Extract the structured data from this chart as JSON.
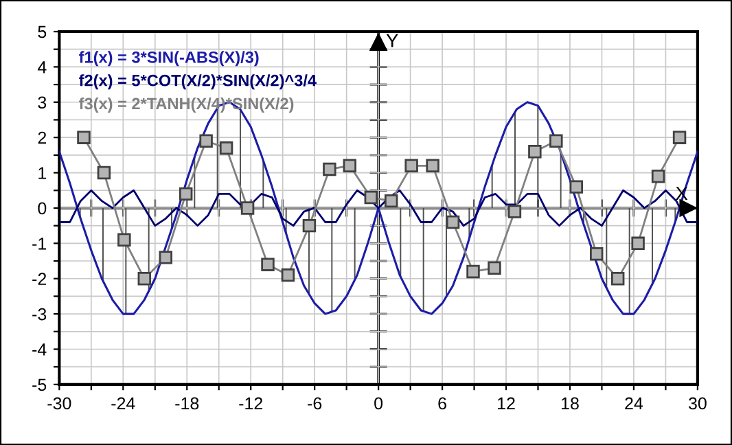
{
  "chart_data": {
    "type": "line",
    "xlabel": "X",
    "ylabel": "Y",
    "xlim": [
      -30,
      30
    ],
    "ylim": [
      -5,
      5
    ],
    "xticks": [
      -30,
      {
        "value": -27,
        "label": null
      },
      -24,
      {
        "value": -21,
        "label": null
      },
      -18,
      {
        "value": -15,
        "label": null
      },
      -12,
      {
        "value": -9,
        "label": null
      },
      -6,
      {
        "value": -3,
        "label": null
      },
      0,
      {
        "value": 3,
        "label": null
      },
      6,
      {
        "value": 9,
        "label": null
      },
      12,
      {
        "value": 15,
        "label": null
      },
      18,
      {
        "value": 21,
        "label": null
      },
      24,
      {
        "value": 27,
        "label": null
      },
      30
    ],
    "yticks": [
      -5,
      {
        "value": -4.5,
        "label": null
      },
      -4,
      {
        "value": -3.5,
        "label": null
      },
      -3,
      {
        "value": -2.5,
        "label": null
      },
      -2,
      {
        "value": -1.5,
        "label": null
      },
      -1,
      {
        "value": -0.5,
        "label": null
      },
      0,
      {
        "value": 0.5,
        "label": null
      },
      1,
      {
        "value": 1.5,
        "label": null
      },
      2,
      {
        "value": 2.5,
        "label": null
      },
      3,
      {
        "value": 3.5,
        "label": null
      },
      4,
      {
        "value": 4.5,
        "label": null
      },
      5
    ],
    "grid": true,
    "legend": "top left",
    "series": [
      {
        "name": "f1(x) = 3*SIN(-ABS(X)/3)",
        "color": "#1c1ca8",
        "type": "area",
        "marker": "none",
        "x": [
          -30,
          -29,
          -28,
          -27,
          -26,
          -25,
          -24,
          -23,
          -22,
          -21,
          -20,
          -19,
          -18,
          -17,
          -16,
          -15,
          -14,
          -13,
          -12,
          -11,
          -10,
          -9,
          -8,
          -7,
          -6,
          -5,
          -4,
          -3,
          -2,
          -1,
          0,
          1,
          2,
          3,
          4,
          5,
          6,
          7,
          8,
          9,
          10,
          11,
          12,
          13,
          14,
          15,
          16,
          17,
          18,
          19,
          20,
          21,
          22,
          23,
          24,
          25,
          26,
          27,
          28,
          29,
          30
        ],
        "values": [
          1.6,
          0.7,
          -0.3,
          -1.2,
          -2.0,
          -2.6,
          -3.0,
          -3.0,
          -2.6,
          -2.0,
          -1.1,
          -0.2,
          0.8,
          1.7,
          2.4,
          2.9,
          3.0,
          2.8,
          2.3,
          1.5,
          0.6,
          -0.4,
          -1.4,
          -2.2,
          -2.7,
          -3.0,
          -2.9,
          -2.5,
          -1.9,
          -1.0,
          0,
          -1.0,
          -1.9,
          -2.5,
          -2.9,
          -3.0,
          -2.7,
          -2.2,
          -1.4,
          -0.4,
          0.6,
          1.5,
          2.3,
          2.8,
          3.0,
          2.9,
          2.4,
          1.7,
          0.8,
          -0.2,
          -1.1,
          -2.0,
          -2.6,
          -3.0,
          -3.0,
          -2.6,
          -2.0,
          -1.2,
          -0.3,
          0.7,
          1.6
        ]
      },
      {
        "name": "f2(x) = 5*COT(X/2)*SIN(X/2)^3/4",
        "color": "#000070",
        "marker": "none",
        "x": [
          -30,
          -29,
          -28,
          -27,
          -26,
          -25,
          -24,
          -23,
          -22,
          -21,
          -20,
          -19,
          -18,
          -17,
          -16,
          -15,
          -14,
          -13,
          -12,
          -11,
          -10,
          -9,
          -8,
          -7,
          -6,
          -5,
          -4,
          -3,
          -2,
          -1,
          0,
          1,
          2,
          3,
          4,
          5,
          6,
          7,
          8,
          9,
          10,
          11,
          12,
          13,
          14,
          15,
          16,
          17,
          18,
          19,
          20,
          21,
          22,
          23,
          24,
          25,
          26,
          27,
          28,
          29,
          30
        ],
        "values": [
          -0.4,
          -0.4,
          0.2,
          0.5,
          0.2,
          0,
          0.3,
          0.5,
          0,
          -0.5,
          -0.3,
          0,
          -0.2,
          -0.5,
          -0.2,
          0.4,
          0.4,
          0.1,
          0.1,
          0.4,
          0.3,
          -0.3,
          -0.5,
          -0.1,
          0,
          -0.4,
          -0.4,
          0.1,
          0.5,
          0.3,
          0,
          0.3,
          0.5,
          0.1,
          -0.4,
          -0.4,
          0,
          -0.1,
          -0.5,
          -0.3,
          0.3,
          0.4,
          0.1,
          0.1,
          0.4,
          0.4,
          -0.2,
          -0.5,
          -0.2,
          0,
          -0.3,
          -0.5,
          0,
          0.5,
          0.3,
          0,
          0.2,
          0.5,
          0.2,
          -0.4,
          -0.4
        ]
      },
      {
        "name": "f3(x) = 2*TANH(X/4)*SIN(X/2)",
        "color": "#808080",
        "marker": "square",
        "x": [
          -27.7,
          -25.8,
          -23.9,
          -22.0,
          -20.0,
          -18.1,
          -16.2,
          -14.3,
          -12.3,
          -10.4,
          -8.5,
          -6.5,
          -4.6,
          -2.7,
          -0.7,
          1.2,
          3.1,
          5.1,
          7.0,
          8.9,
          10.9,
          12.8,
          14.7,
          16.7,
          18.6,
          20.5,
          22.5,
          24.4,
          26.3,
          28.3
        ],
        "values": [
          2.0,
          1.0,
          -0.9,
          -2.0,
          -1.4,
          0.4,
          1.9,
          1.7,
          0.0,
          -1.6,
          -1.9,
          -0.5,
          1.1,
          1.2,
          0.3,
          0.2,
          1.2,
          1.2,
          -0.4,
          -1.8,
          -1.7,
          -0.1,
          1.6,
          1.9,
          0.6,
          -1.3,
          -2.0,
          -1.0,
          0.9,
          2.0
        ]
      }
    ]
  }
}
